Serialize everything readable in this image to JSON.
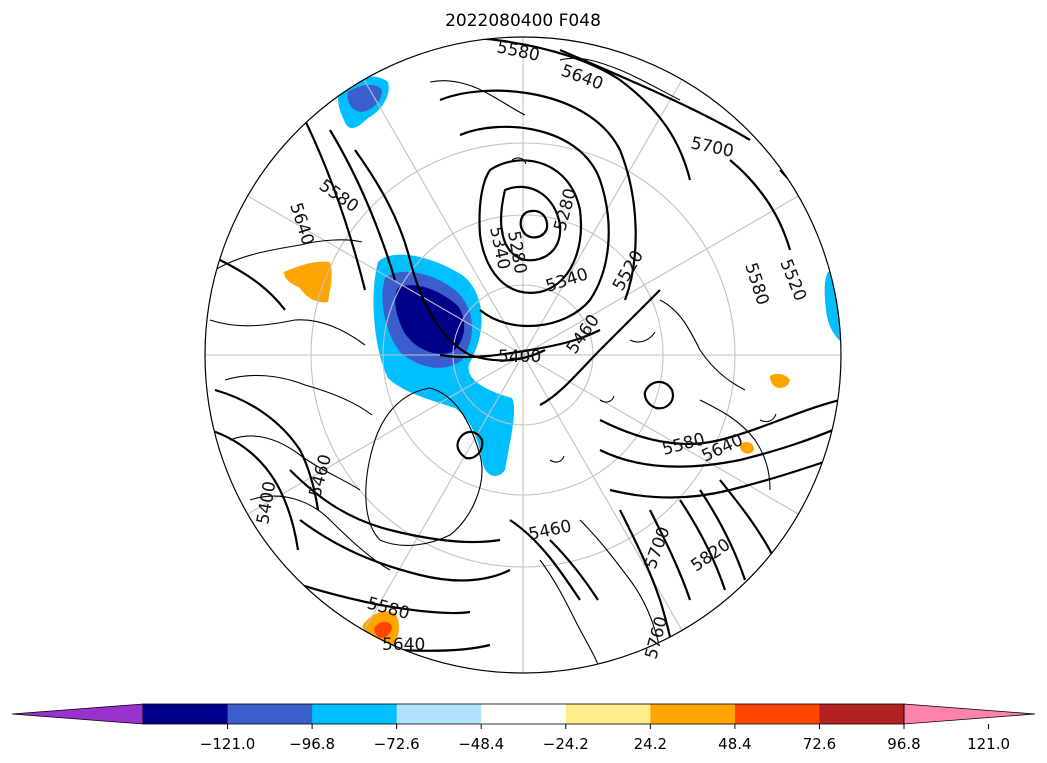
{
  "title": "2022080400 F048",
  "map": {
    "projection": "north-polar-stereographic",
    "graticule": true,
    "contour_color": "#000000",
    "contour_labels": [
      "5580",
      "5640",
      "5700",
      "5580",
      "5520",
      "5280",
      "5340",
      "5280",
      "5340",
      "5520",
      "5460",
      "5400",
      "5580",
      "5640",
      "5580",
      "5640",
      "5460",
      "5400",
      "5460",
      "5700",
      "5820",
      "5760",
      "5640",
      "5580"
    ]
  },
  "colorbar": {
    "extend": "both",
    "colors": [
      "#9932CC",
      "#00008B",
      "#3A5FCD",
      "#00BFFF",
      "#B0E2FF",
      "#FFFFFF",
      "#FFEC8B",
      "#FFA500",
      "#FF4500",
      "#B22222",
      "#FF82AB"
    ],
    "ticks": [
      "−121.0",
      "−96.8",
      "−72.6",
      "−48.4",
      "−24.2",
      "24.2",
      "48.4",
      "72.6",
      "96.8",
      "121.0"
    ]
  }
}
